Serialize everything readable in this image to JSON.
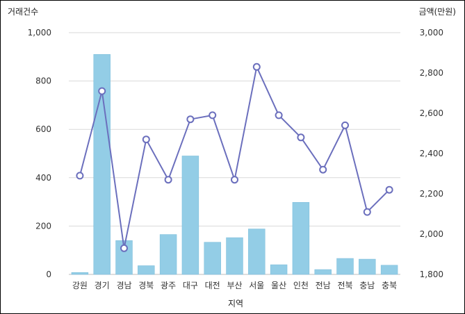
{
  "chart_data": {
    "type": "bar+line",
    "xlabel": "지역",
    "categories": [
      "강원",
      "경기",
      "경남",
      "경북",
      "광주",
      "대구",
      "대전",
      "부산",
      "서울",
      "울산",
      "인천",
      "전남",
      "전북",
      "충남",
      "충북"
    ],
    "left_axis": {
      "label": "거래건수",
      "ylim": [
        0,
        1000
      ],
      "ticks": [
        "0",
        "200",
        "400",
        "600",
        "800",
        "1,000"
      ],
      "tick_values": [
        0,
        200,
        400,
        600,
        800,
        1000
      ]
    },
    "right_axis": {
      "label": "금액(만원)",
      "ylim": [
        1800,
        3000
      ],
      "ticks": [
        "1,800",
        "2,000",
        "2,200",
        "2,400",
        "2,600",
        "2,800",
        "3,000"
      ],
      "tick_values": [
        1800,
        2000,
        2200,
        2400,
        2600,
        2800,
        3000
      ]
    },
    "series": [
      {
        "type": "bar",
        "axis": "left",
        "color": "#93cde6",
        "values": [
          8,
          910,
          140,
          36,
          165,
          490,
          133,
          152,
          188,
          40,
          298,
          20,
          66,
          63,
          38
        ]
      },
      {
        "type": "line",
        "axis": "right",
        "color": "#6b6fbd",
        "values": [
          2290,
          2710,
          1930,
          2470,
          2270,
          2570,
          2590,
          2270,
          2830,
          2590,
          2480,
          2320,
          2540,
          2110,
          2220
        ]
      }
    ],
    "grid": true,
    "legend": "none"
  }
}
